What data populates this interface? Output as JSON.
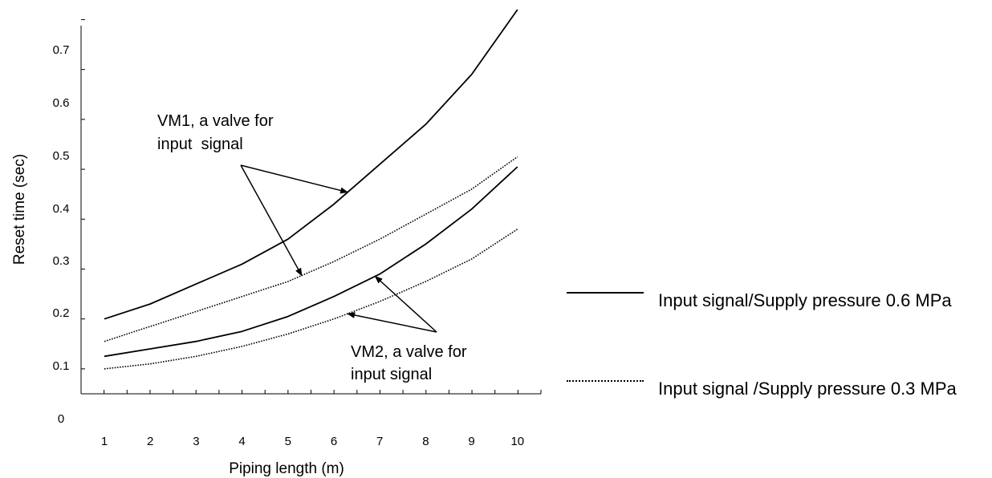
{
  "chart_data": {
    "type": "line",
    "xlabel": "Piping length (m)",
    "ylabel": "Reset time (sec)",
    "x_ticks": [
      "1",
      "2",
      "3",
      "4",
      "5",
      "6",
      "7",
      "8",
      "9",
      "10"
    ],
    "y_ticks": [
      "0",
      "0.1",
      "0.2",
      "0.3",
      "0.4",
      "0.5",
      "0.6",
      "0.7"
    ],
    "xlim": [
      0.5,
      10.6
    ],
    "ylim": [
      0,
      0.77
    ],
    "series": [
      {
        "name": "Input signal/Supply pressure 0.6 MPa",
        "label": "VM1",
        "style": "solid",
        "x": [
          1,
          2,
          3,
          4,
          5,
          6,
          7,
          8,
          9,
          10
        ],
        "y": [
          0.15,
          0.18,
          0.22,
          0.26,
          0.31,
          0.38,
          0.46,
          0.54,
          0.64,
          0.77
        ]
      },
      {
        "name": "Input signal /Supply pressure 0.3 MPa",
        "label": "VM1",
        "style": "dotted",
        "x": [
          1,
          2,
          3,
          4,
          5,
          6,
          7,
          8,
          9,
          10
        ],
        "y": [
          0.105,
          0.135,
          0.165,
          0.195,
          0.225,
          0.265,
          0.31,
          0.36,
          0.41,
          0.475
        ]
      },
      {
        "name": "Input signal/Supply pressure 0.6 MPa",
        "label": "VM2",
        "style": "solid",
        "x": [
          1,
          2,
          3,
          4,
          5,
          6,
          7,
          8,
          9,
          10
        ],
        "y": [
          0.075,
          0.09,
          0.105,
          0.125,
          0.155,
          0.195,
          0.24,
          0.3,
          0.37,
          0.455
        ]
      },
      {
        "name": "Input signal /Supply pressure 0.3 MPa",
        "label": "VM2",
        "style": "dotted",
        "x": [
          1,
          2,
          3,
          4,
          5,
          6,
          7,
          8,
          9,
          10
        ],
        "y": [
          0.05,
          0.06,
          0.075,
          0.095,
          0.12,
          0.15,
          0.185,
          0.225,
          0.27,
          0.33
        ]
      }
    ],
    "annotations": [
      {
        "text": "VM1, a valve for input signal",
        "lines": [
          "VM1, a valve for",
          "input  signal"
        ],
        "targets": [
          {
            "series": 0,
            "x": 6.3
          },
          {
            "series": 1,
            "x": 5.3
          }
        ]
      },
      {
        "text": "VM2, a valve for input signal",
        "lines": [
          "VM2, a valve for",
          "input signal"
        ],
        "targets": [
          {
            "series": 2,
            "x": 6.9
          },
          {
            "series": 3,
            "x": 6.3
          }
        ]
      }
    ],
    "legend": [
      {
        "line_style": "solid",
        "text": "Input signal/Supply pressure 0.6 MPa"
      },
      {
        "line_style": "dotted",
        "text": "Input signal /Supply pressure 0.3 MPa"
      }
    ],
    "legend_position": "right",
    "grid": false
  }
}
